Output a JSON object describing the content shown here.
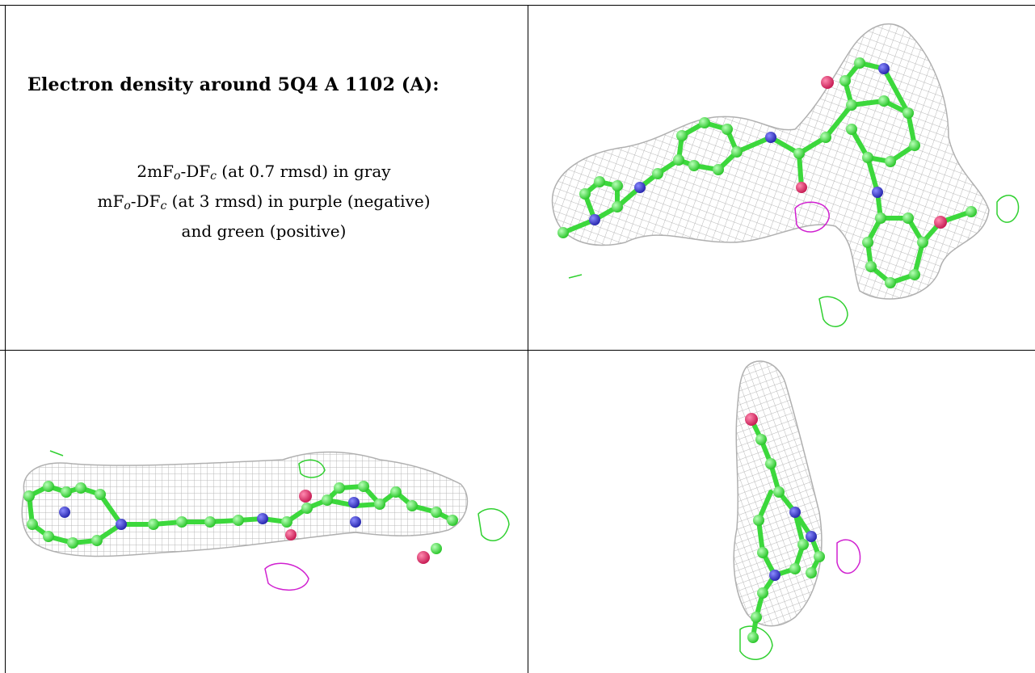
{
  "header": {
    "title": "Electron density around 5Q4 A 1102 (A):"
  },
  "legend": {
    "line1_prefix": "2mF",
    "line1_sub1": "o",
    "line1_mid": "-DF",
    "line1_sub2": "c",
    "line1_suffix": " (at 0.7 rmsd) in gray",
    "line2_prefix": "mF",
    "line2_sub1": "o",
    "line2_mid": "-DF",
    "line2_sub2": "c",
    "line2_suffix": " (at 3 rmsd) in purple (negative)",
    "line3": "and green (positive)"
  },
  "colors": {
    "mesh_gray": "#b8b8b8",
    "carbon_green": "#44e844",
    "nitrogen_blue": "#3a3ad0",
    "oxygen_red": "#e0306a",
    "negative_purple": "#d020d0",
    "positive_green": "#30d030"
  },
  "views": [
    {
      "name": "top-right-view"
    },
    {
      "name": "bottom-left-view"
    },
    {
      "name": "bottom-right-view"
    }
  ]
}
